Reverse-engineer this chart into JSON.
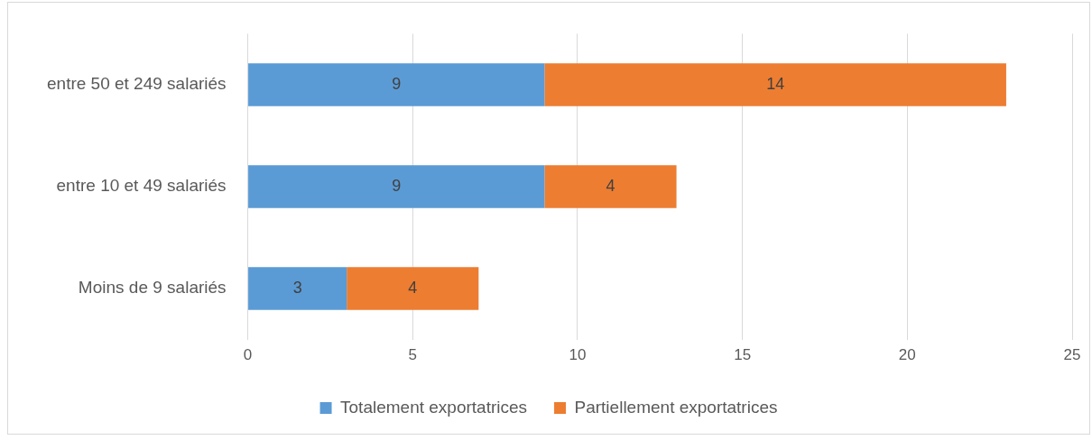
{
  "chart_data": {
    "type": "bar",
    "orientation": "horizontal",
    "stacked": true,
    "categories": [
      "entre 50 et 249 salariés",
      "entre 10 et 49 salariés",
      "Moins de 9 salariés"
    ],
    "series": [
      {
        "name": "Totalement exportatrices",
        "color": "#5b9bd5",
        "values": [
          9,
          9,
          3
        ]
      },
      {
        "name": "Partiellement exportatrices",
        "color": "#ed7d31",
        "values": [
          14,
          4,
          4
        ]
      }
    ],
    "xlim": [
      0,
      25
    ],
    "xticks": [
      0,
      5,
      10,
      15,
      20,
      25
    ],
    "grid": "x",
    "legend": "bottom",
    "data_labels": true
  }
}
